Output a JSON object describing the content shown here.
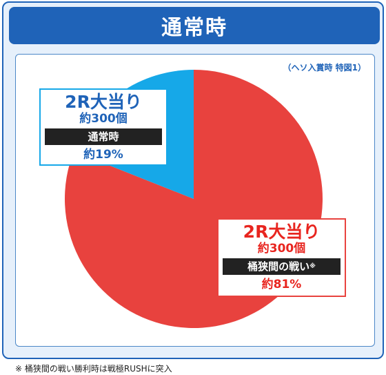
{
  "title": "通常時",
  "subtitle": "（ヘソ入賞時 特図1）",
  "chart_data": {
    "type": "pie",
    "slices": [
      {
        "label": "2R大当り",
        "rounds": "約300個",
        "mode": "桶狭間の戦い",
        "mode_mark": "※",
        "percent_text": "約81%",
        "value": 81,
        "color": "#e8423e"
      },
      {
        "label": "2R大当り",
        "rounds": "約300個",
        "mode": "通常時",
        "mode_mark": "",
        "percent_text": "約19%",
        "value": 19,
        "color": "#16a8e8"
      }
    ]
  },
  "footnote": "※ 桶狭間の戦い勝利時は戦極RUSHに突入",
  "colors": {
    "accent": "#1f63b8",
    "red": "#e8423e",
    "blue": "#16a8e8"
  }
}
